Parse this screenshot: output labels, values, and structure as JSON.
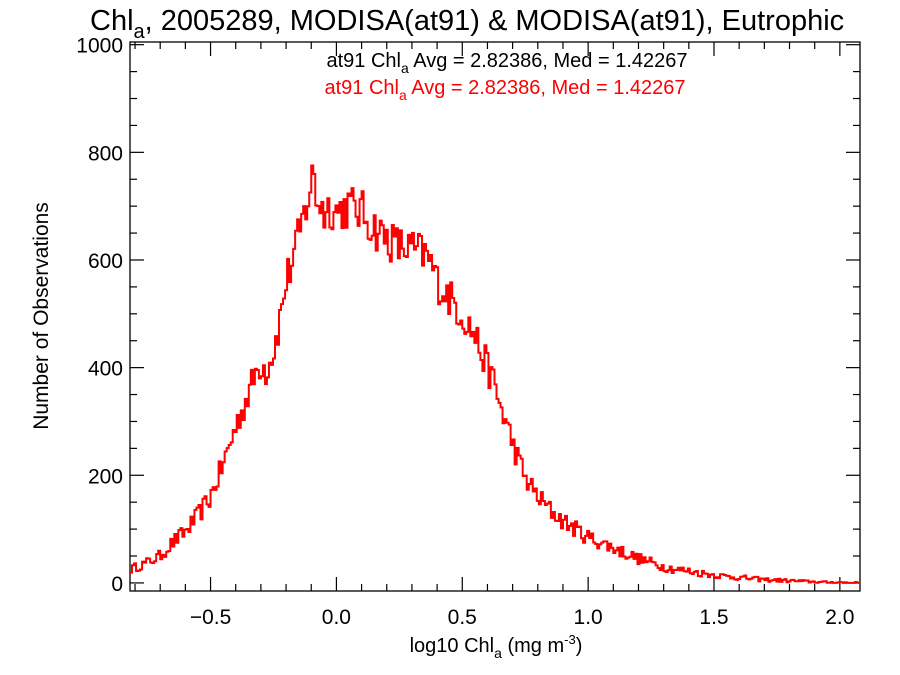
{
  "chart_data": {
    "type": "line",
    "drawstyle": "steps",
    "title": {
      "main": "Chl",
      "sub": "a",
      "rest": ", 2005289, MODISA(at91) & MODISA(at91), Eutrophic"
    },
    "xlabel": {
      "pre": "log10 Chl",
      "sub": "a",
      "mid": " (mg m",
      "sup": "-3",
      "post": ")"
    },
    "ylabel": "Number of Observations",
    "xlim": [
      -0.82,
      2.08
    ],
    "ylim": [
      -15,
      1005
    ],
    "grid": false,
    "x_ticks": [
      {
        "value": -0.5,
        "label": "−0.5"
      },
      {
        "value": 0.0,
        "label": "0.0"
      },
      {
        "value": 0.5,
        "label": "0.5"
      },
      {
        "value": 1.0,
        "label": "1.0"
      },
      {
        "value": 1.5,
        "label": "1.5"
      },
      {
        "value": 2.0,
        "label": "2.0"
      }
    ],
    "y_ticks": [
      {
        "value": 0,
        "label": "0"
      },
      {
        "value": 200,
        "label": "200"
      },
      {
        "value": 400,
        "label": "400"
      },
      {
        "value": 600,
        "label": "600"
      },
      {
        "value": 800,
        "label": "800"
      },
      {
        "value": 1000,
        "label": "1000"
      }
    ],
    "annotations": [
      {
        "pre": "at91 Chl",
        "sub": "a",
        "post": " Avg = 2.82386, Med = 1.42267",
        "color": "#000000"
      },
      {
        "pre": "at91 Chl",
        "sub": "a",
        "post": " Avg = 2.82386, Med = 1.42267",
        "color": "#ff0000"
      }
    ],
    "series": [
      {
        "color": "#ff0000",
        "points": [
          [
            -0.82,
            25
          ],
          [
            -0.75,
            38
          ],
          [
            -0.7,
            50
          ],
          [
            -0.65,
            75
          ],
          [
            -0.6,
            95
          ],
          [
            -0.55,
            125
          ],
          [
            -0.5,
            160
          ],
          [
            -0.45,
            220
          ],
          [
            -0.4,
            290
          ],
          [
            -0.35,
            350
          ],
          [
            -0.32,
            390
          ],
          [
            -0.3,
            410
          ],
          [
            -0.28,
            395
          ],
          [
            -0.25,
            430
          ],
          [
            -0.22,
            500
          ],
          [
            -0.2,
            560
          ],
          [
            -0.18,
            590
          ],
          [
            -0.15,
            640
          ],
          [
            -0.12,
            700
          ],
          [
            -0.1,
            740
          ],
          [
            -0.09,
            765
          ],
          [
            -0.08,
            720
          ],
          [
            -0.05,
            690
          ],
          [
            -0.02,
            700
          ],
          [
            0.0,
            690
          ],
          [
            0.05,
            700
          ],
          [
            0.1,
            690
          ],
          [
            0.15,
            660
          ],
          [
            0.2,
            640
          ],
          [
            0.25,
            625
          ],
          [
            0.3,
            620
          ],
          [
            0.35,
            610
          ],
          [
            0.38,
            590
          ],
          [
            0.4,
            560
          ],
          [
            0.45,
            530
          ],
          [
            0.5,
            500
          ],
          [
            0.55,
            460
          ],
          [
            0.6,
            400
          ],
          [
            0.62,
            380
          ],
          [
            0.65,
            330
          ],
          [
            0.68,
            290
          ],
          [
            0.7,
            260
          ],
          [
            0.73,
            220
          ],
          [
            0.75,
            195
          ],
          [
            0.8,
            160
          ],
          [
            0.85,
            135
          ],
          [
            0.9,
            115
          ],
          [
            0.95,
            100
          ],
          [
            1.0,
            85
          ],
          [
            1.05,
            75
          ],
          [
            1.1,
            65
          ],
          [
            1.15,
            55
          ],
          [
            1.2,
            45
          ],
          [
            1.25,
            38
          ],
          [
            1.3,
            30
          ],
          [
            1.35,
            25
          ],
          [
            1.4,
            22
          ],
          [
            1.45,
            18
          ],
          [
            1.5,
            15
          ],
          [
            1.55,
            12
          ],
          [
            1.6,
            10
          ],
          [
            1.65,
            8
          ],
          [
            1.7,
            6
          ],
          [
            1.75,
            5
          ],
          [
            1.8,
            4
          ],
          [
            1.85,
            3
          ],
          [
            1.9,
            2
          ],
          [
            1.95,
            1
          ],
          [
            2.0,
            1
          ],
          [
            2.05,
            0
          ],
          [
            2.08,
            0
          ]
        ]
      }
    ]
  }
}
